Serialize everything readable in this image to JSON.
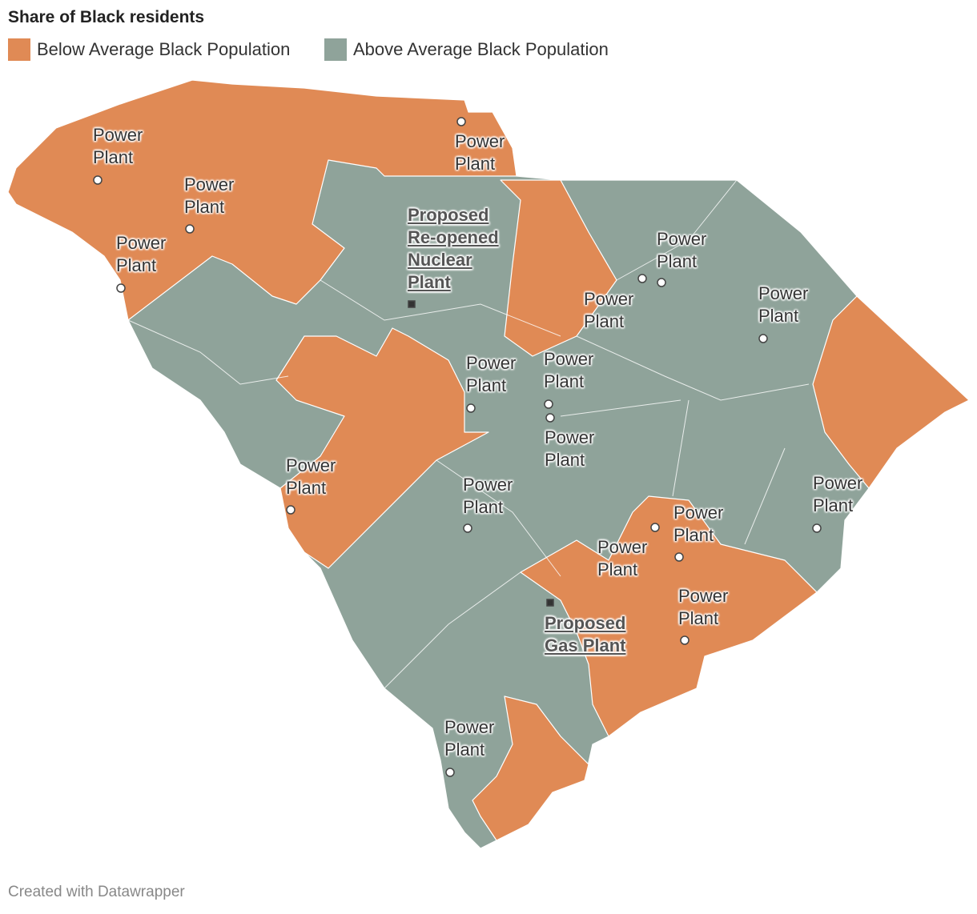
{
  "title": "Share of Black residents",
  "legend": [
    {
      "label": "Below Average Black Population",
      "color": "#e08a55"
    },
    {
      "label": "Above Average Black Population",
      "color": "#8fa39a"
    }
  ],
  "markers": [
    {
      "label": "Power Plant"
    },
    {
      "label": "Power Plant"
    },
    {
      "label": "Power Plant"
    },
    {
      "label": "Power Plant"
    },
    {
      "label": "Proposed Re-opened Nuclear Plant"
    },
    {
      "label": "Power Plant"
    },
    {
      "label": "Power Plant"
    },
    {
      "label": "Power Plant"
    },
    {
      "label": "Power Plant"
    },
    {
      "label": "Power Plant"
    },
    {
      "label": "Power Plant"
    },
    {
      "label": "Power Plant"
    },
    {
      "label": "Power Plant"
    },
    {
      "label": "Power Plant"
    },
    {
      "label": "Power Plant"
    },
    {
      "label": "Power Plant"
    },
    {
      "label": "Power Plant"
    },
    {
      "label": "Proposed Gas Plant"
    },
    {
      "label": "Power Plant"
    }
  ],
  "credit": "Created with Datawrapper"
}
